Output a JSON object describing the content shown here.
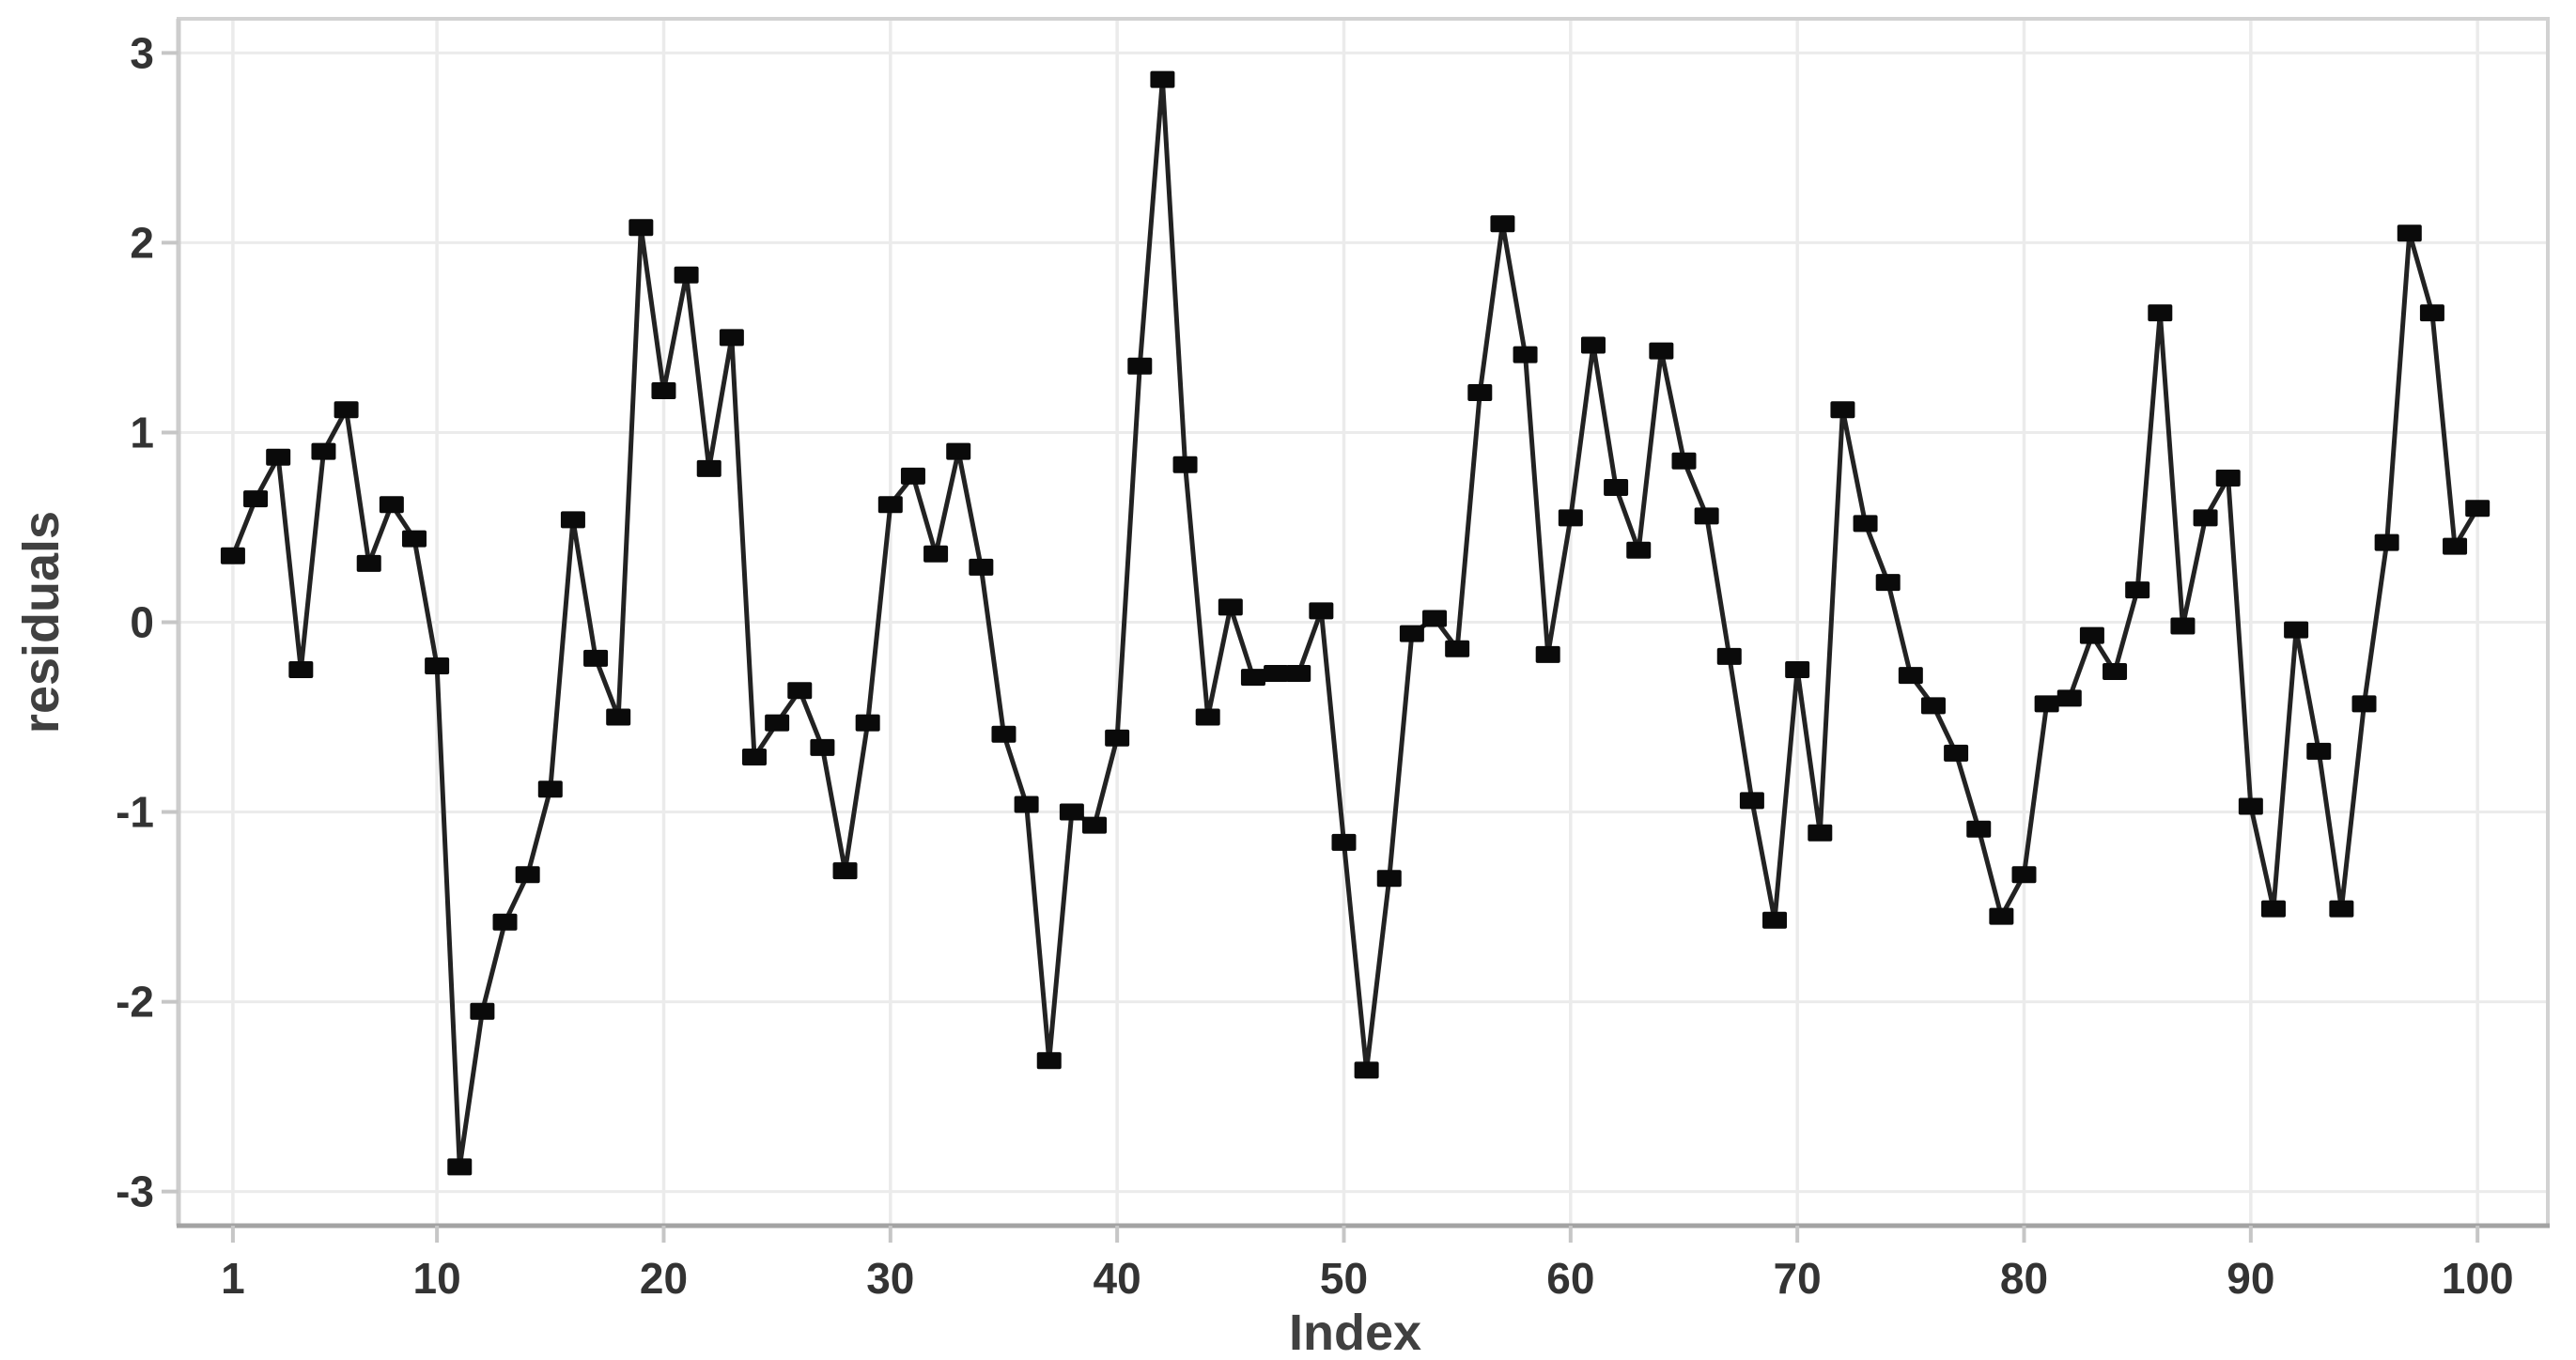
{
  "figure": {
    "background": "#ffffff"
  },
  "chart_data": {
    "type": "line",
    "title": "",
    "xlabel": "Index",
    "ylabel": "residuals",
    "legend": "none",
    "grid": true,
    "xlim": [
      -1.4,
      103.1
    ],
    "ylim": [
      -3.18,
      3.18
    ],
    "x_ticks": [
      1,
      10,
      20,
      30,
      40,
      50,
      60,
      70,
      80,
      90,
      100
    ],
    "y_ticks": [
      -3,
      -2,
      -1,
      0,
      1,
      2,
      3
    ],
    "marker": "filled-square",
    "colors": {
      "line": "#222222",
      "marker": "#0a0a0a",
      "gridline": "#ebebeb",
      "panel_border": "#d2d2d2",
      "axis_line": "#a3a3a3",
      "tick_mark": "#c6c6c6",
      "tick_label": "#333333",
      "axis_title": "#404040",
      "panel_background": "#ffffff"
    },
    "x": [
      1,
      2,
      3,
      4,
      5,
      6,
      7,
      8,
      9,
      10,
      11,
      12,
      13,
      14,
      15,
      16,
      17,
      18,
      19,
      20,
      21,
      22,
      23,
      24,
      25,
      26,
      27,
      28,
      29,
      30,
      31,
      32,
      33,
      34,
      35,
      36,
      37,
      38,
      39,
      40,
      41,
      42,
      43,
      44,
      45,
      46,
      47,
      48,
      49,
      50,
      51,
      52,
      53,
      54,
      55,
      56,
      57,
      58,
      59,
      60,
      61,
      62,
      63,
      64,
      65,
      66,
      67,
      68,
      69,
      70,
      71,
      72,
      73,
      74,
      75,
      76,
      77,
      78,
      79,
      80,
      81,
      82,
      83,
      84,
      85,
      86,
      87,
      88,
      89,
      90,
      91,
      92,
      93,
      94,
      95,
      96,
      97,
      98,
      99,
      100
    ],
    "values": [
      0.35,
      0.65,
      0.87,
      -0.25,
      0.9,
      1.12,
      0.31,
      0.62,
      0.44,
      -0.23,
      -2.87,
      -2.05,
      -1.58,
      -1.33,
      -0.88,
      0.54,
      -0.19,
      -0.5,
      2.08,
      1.22,
      1.83,
      0.81,
      1.5,
      -0.71,
      -0.53,
      -0.36,
      -0.66,
      -1.31,
      -0.53,
      0.62,
      0.77,
      0.36,
      0.9,
      0.29,
      -0.59,
      -0.96,
      -2.31,
      -1.0,
      -1.07,
      -0.61,
      1.35,
      2.86,
      0.83,
      -0.5,
      0.08,
      -0.29,
      -0.27,
      -0.27,
      0.06,
      -1.16,
      -2.36,
      -1.35,
      -0.06,
      0.02,
      -0.14,
      1.21,
      2.1,
      1.41,
      -0.17,
      0.55,
      1.46,
      0.71,
      0.38,
      1.43,
      0.85,
      0.56,
      -0.18,
      -0.94,
      -1.57,
      -0.25,
      -1.11,
      1.12,
      0.52,
      0.21,
      -0.28,
      -0.44,
      -0.69,
      -1.09,
      -1.55,
      -1.33,
      -0.43,
      -0.4,
      -0.07,
      -0.26,
      0.17,
      1.63,
      -0.02,
      0.55,
      0.76,
      -0.97,
      -1.51,
      -0.04,
      -0.68,
      -1.51,
      -0.43,
      0.42,
      2.05,
      1.63,
      0.4,
      0.6
    ]
  }
}
